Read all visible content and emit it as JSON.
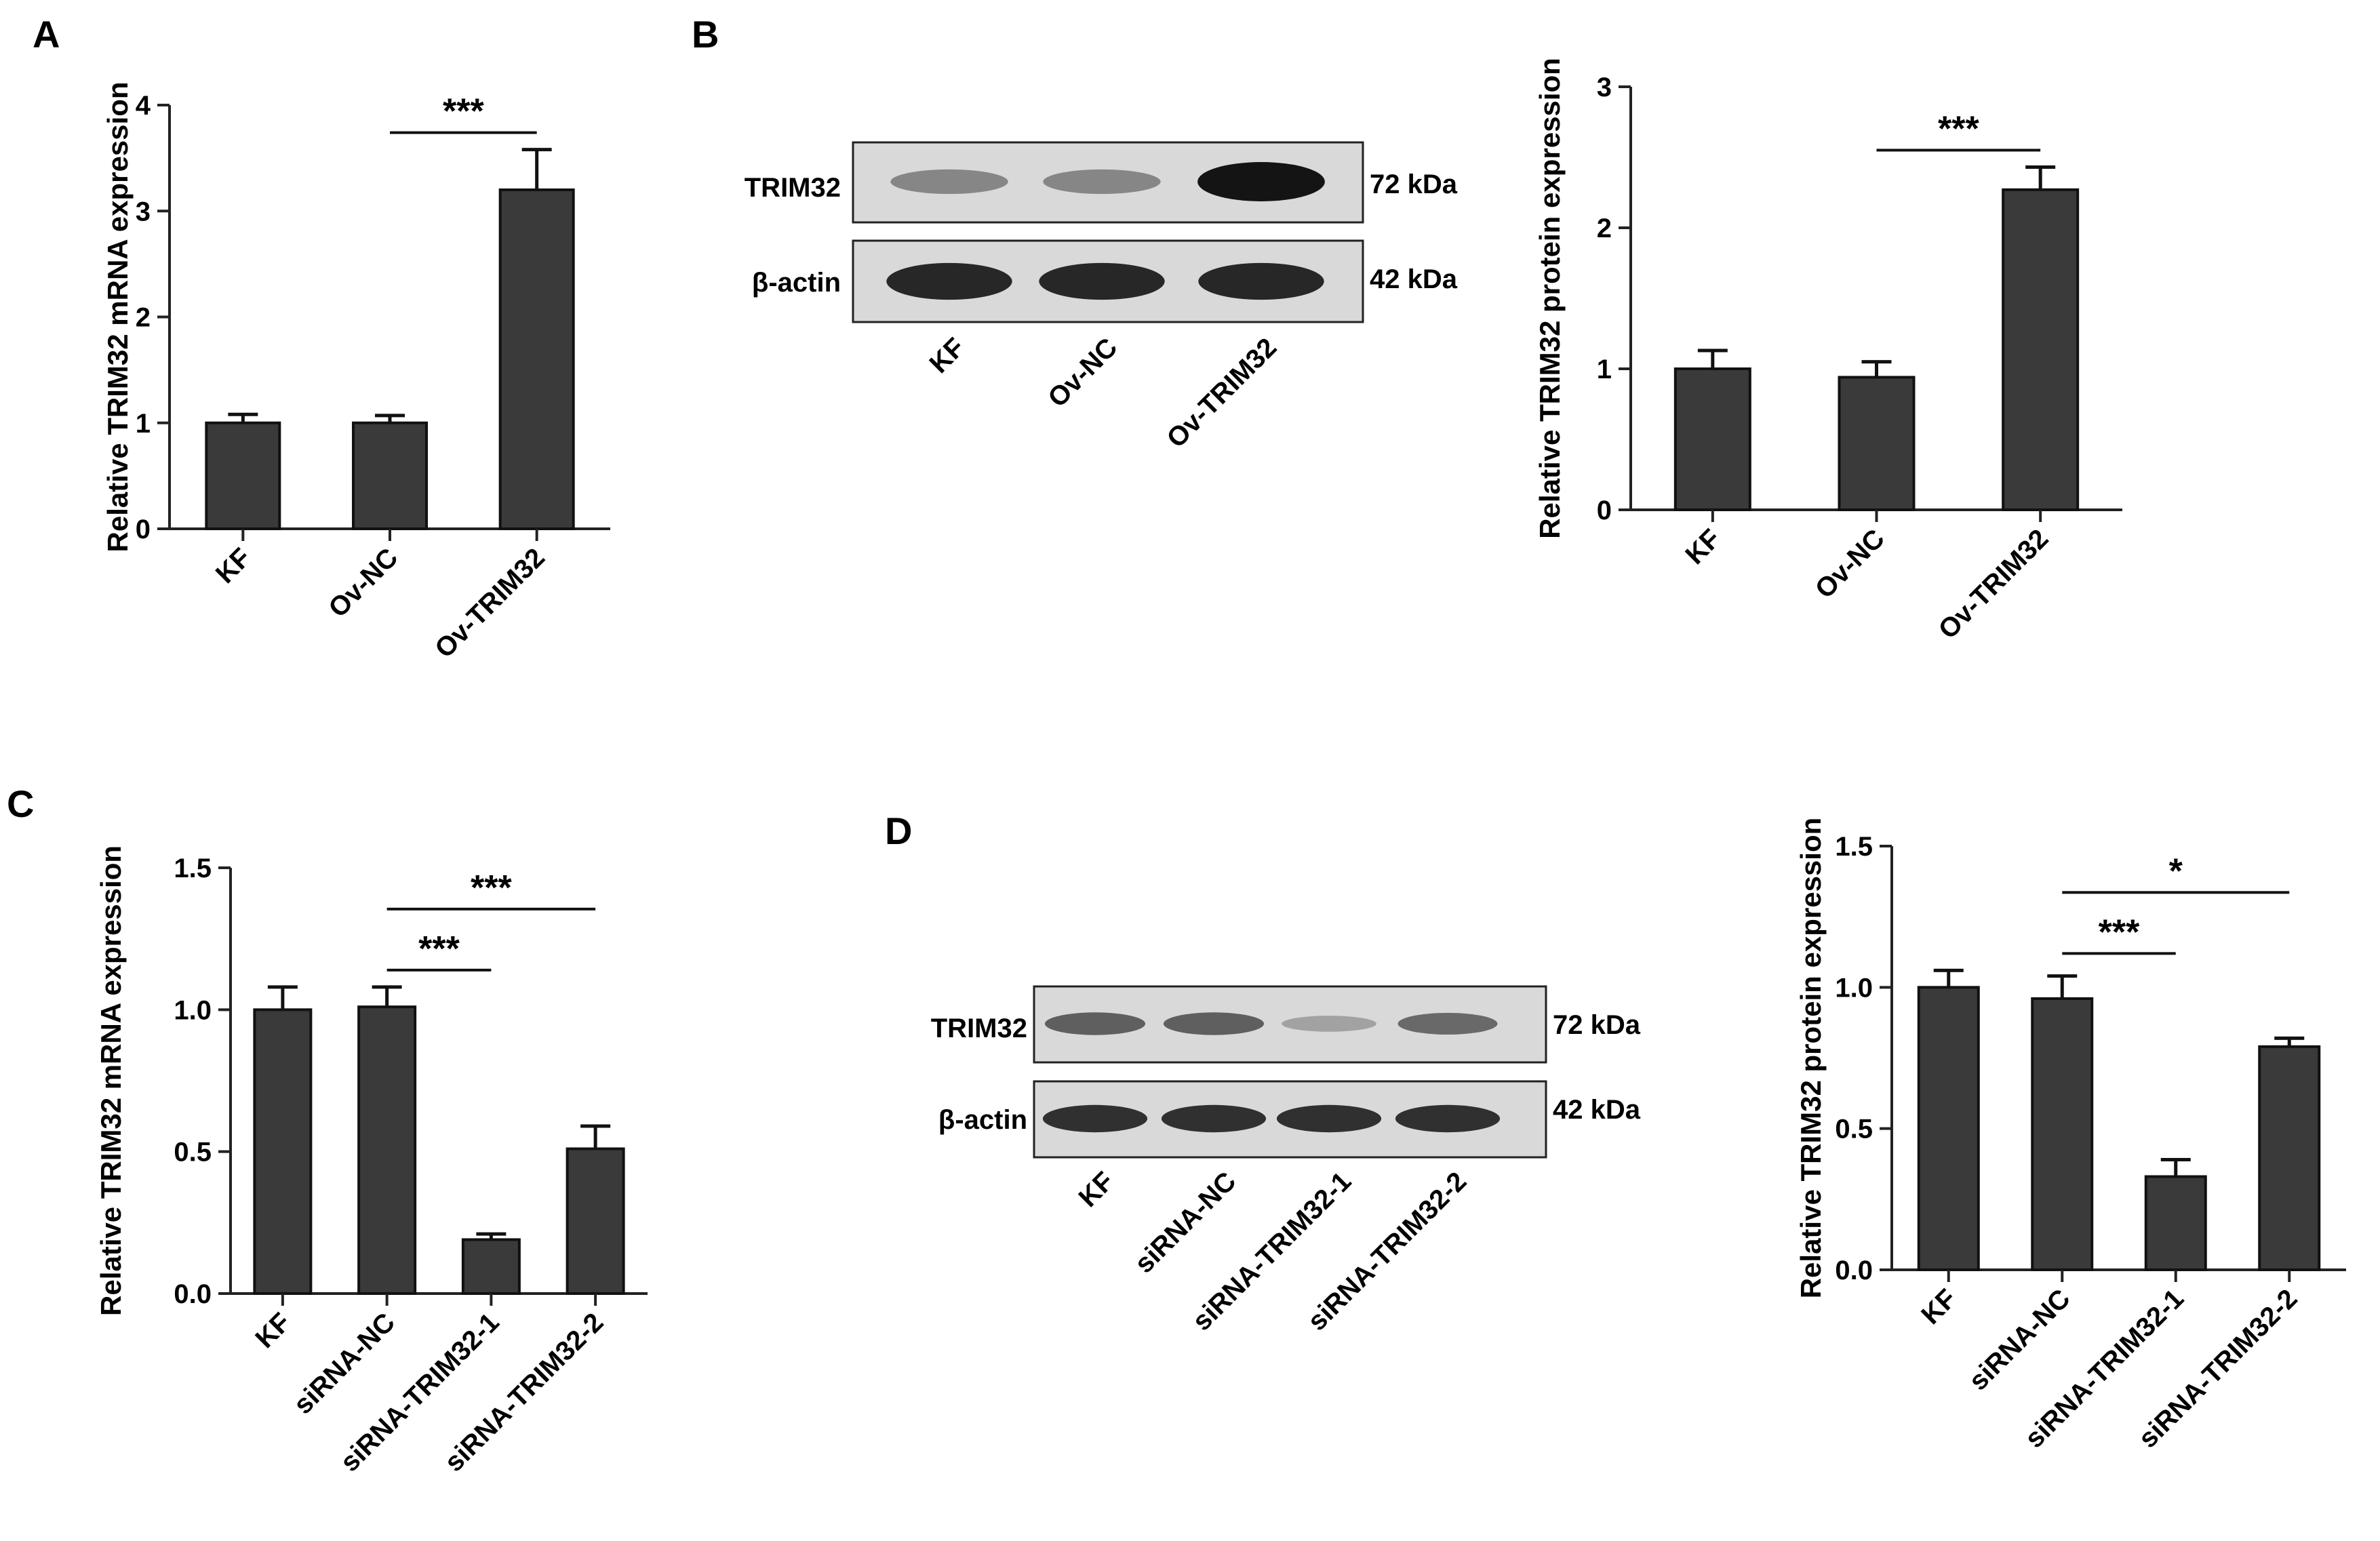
{
  "panels": {
    "A": {
      "letter": "A"
    },
    "B": {
      "letter": "B"
    },
    "C": {
      "letter": "C"
    },
    "D": {
      "letter": "D"
    }
  },
  "blot_B": {
    "rows": [
      {
        "protein": "TRIM32",
        "kda": "72 kDa",
        "intensity": [
          0.35,
          0.35,
          0.95
        ]
      },
      {
        "protein": "β-actin",
        "kda": "42 kDa",
        "intensity": [
          0.85,
          0.85,
          0.85
        ]
      }
    ],
    "lanes": [
      "KF",
      "Ov-NC",
      "Ov-TRIM32"
    ]
  },
  "blot_D": {
    "rows": [
      {
        "protein": "TRIM32",
        "kda": "72 kDa",
        "intensity": [
          0.55,
          0.55,
          0.2,
          0.5
        ]
      },
      {
        "protein": "β-actin",
        "kda": "42 kDa",
        "intensity": [
          0.8,
          0.8,
          0.8,
          0.8
        ]
      }
    ],
    "lanes": [
      "KF",
      "siRNA-NC",
      "siRNA-TRIM32-1",
      "siRNA-TRIM32-2"
    ]
  },
  "chart_data": [
    {
      "panel": "A",
      "type": "bar",
      "categories": [
        "KF",
        "Ov-NC",
        "Ov-TRIM32"
      ],
      "values": [
        1.0,
        1.0,
        3.2
      ],
      "errors": [
        0.08,
        0.07,
        0.38
      ],
      "ylabel": "Relative TRIM32 mRNA expression",
      "ylim": [
        0,
        4
      ],
      "yticks": [
        "0",
        "1",
        "2",
        "3",
        "4"
      ],
      "significance": [
        {
          "from": 1,
          "to": 2,
          "label": "***"
        }
      ]
    },
    {
      "panel": "B",
      "type": "bar",
      "categories": [
        "KF",
        "Ov-NC",
        "Ov-TRIM32"
      ],
      "values": [
        1.0,
        0.94,
        2.27
      ],
      "errors": [
        0.13,
        0.11,
        0.16
      ],
      "ylabel": "Relative TRIM32 protein expression",
      "ylim": [
        0,
        3
      ],
      "yticks": [
        "0",
        "1",
        "2",
        "3"
      ],
      "significance": [
        {
          "from": 1,
          "to": 2,
          "label": "***"
        }
      ]
    },
    {
      "panel": "C",
      "type": "bar",
      "categories": [
        "KF",
        "siRNA-NC",
        "siRNA-TRIM32-1",
        "siRNA-TRIM32-2"
      ],
      "values": [
        1.0,
        1.01,
        0.19,
        0.51
      ],
      "errors": [
        0.08,
        0.07,
        0.02,
        0.08
      ],
      "ylabel": "Relative TRIM32 mRNA expression",
      "ylim": [
        0,
        1.5
      ],
      "yticks": [
        "0.0",
        "0.5",
        "1.0",
        "1.5"
      ],
      "significance": [
        {
          "from": 1,
          "to": 2,
          "label": "***"
        },
        {
          "from": 1,
          "to": 3,
          "label": "***"
        }
      ]
    },
    {
      "panel": "D",
      "type": "bar",
      "categories": [
        "KF",
        "siRNA-NC",
        "siRNA-TRIM32-1",
        "siRNA-TRIM32-2"
      ],
      "values": [
        1.0,
        0.96,
        0.33,
        0.79
      ],
      "errors": [
        0.06,
        0.08,
        0.06,
        0.03
      ],
      "ylabel": "Relative TRIM32 protein expression",
      "ylim": [
        0,
        1.5
      ],
      "yticks": [
        "0.0",
        "0.5",
        "1.0",
        "1.5"
      ],
      "significance": [
        {
          "from": 1,
          "to": 2,
          "label": "***"
        },
        {
          "from": 1,
          "to": 3,
          "label": "*"
        }
      ]
    }
  ]
}
